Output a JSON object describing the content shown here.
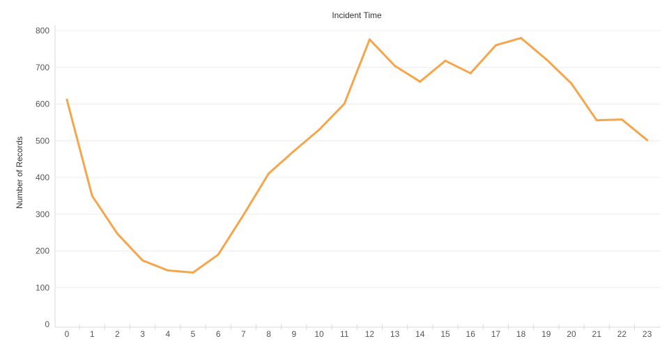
{
  "chart_data": {
    "type": "line",
    "title": "Incident Time",
    "xlabel": "",
    "ylabel": "Number of Records",
    "x": [
      0,
      1,
      2,
      3,
      4,
      5,
      6,
      7,
      8,
      9,
      10,
      11,
      12,
      13,
      14,
      15,
      16,
      17,
      18,
      19,
      20,
      21,
      22,
      23
    ],
    "x_tick_labels": [
      "0",
      "1",
      "2",
      "3",
      "4",
      "5",
      "6",
      "7",
      "8",
      "9",
      "10",
      "11",
      "12",
      "13",
      "14",
      "15",
      "16",
      "17",
      "18",
      "19",
      "20",
      "21",
      "22",
      "23"
    ],
    "y_ticks": [
      0,
      100,
      200,
      300,
      400,
      500,
      600,
      700,
      800
    ],
    "ylim": [
      0,
      800
    ],
    "series": [
      {
        "color": "#f5a54b",
        "values": [
          612,
          350,
          247,
          174,
          147,
          141,
          190,
          298,
          411,
          472,
          530,
          601,
          776,
          704,
          661,
          718,
          684,
          760,
          780,
          722,
          656,
          556,
          558,
          502
        ]
      }
    ],
    "grid": true,
    "legend": "none"
  }
}
